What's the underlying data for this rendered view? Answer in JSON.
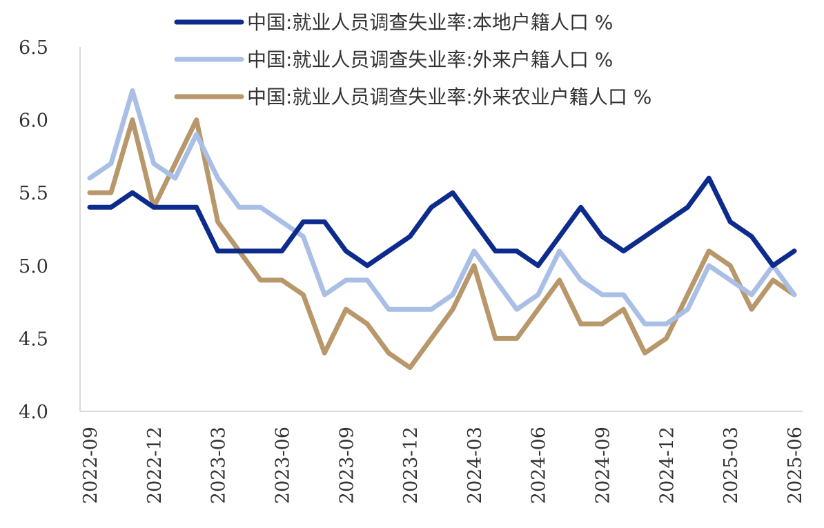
{
  "chart_data": {
    "type": "line",
    "title": "",
    "xlabel": "",
    "ylabel": "",
    "ylim": [
      4.0,
      6.5
    ],
    "y_ticks": [
      "4.0",
      "4.5",
      "5.0",
      "5.5",
      "6.0",
      "6.5"
    ],
    "grid": false,
    "legend_position": "top",
    "x": [
      "2022-09",
      "2022-10",
      "2022-11",
      "2022-12",
      "2023-01",
      "2023-02",
      "2023-03",
      "2023-04",
      "2023-05",
      "2023-06",
      "2023-07",
      "2023-08",
      "2023-09",
      "2023-10",
      "2023-11",
      "2023-12",
      "2024-01",
      "2024-02",
      "2024-03",
      "2024-04",
      "2024-05",
      "2024-06",
      "2024-07",
      "2024-08",
      "2024-09",
      "2024-10",
      "2024-11",
      "2024-12",
      "2025-01",
      "2025-02",
      "2025-03",
      "2025-04",
      "2025-05",
      "2025-06"
    ],
    "x_tick_labels": [
      "2022-09",
      "2022-12",
      "2023-03",
      "2023-06",
      "2023-09",
      "2023-12",
      "2024-03",
      "2024-06",
      "2024-09",
      "2024-12",
      "2025-03",
      "2025-06"
    ],
    "series": [
      {
        "name": "中国:就业人员调查失业率:本地户籍人口 %",
        "color": "#0d2b8c",
        "values": [
          5.4,
          5.4,
          5.5,
          5.4,
          5.4,
          5.4,
          5.1,
          5.1,
          5.1,
          5.1,
          5.3,
          5.3,
          5.1,
          5.0,
          5.1,
          5.2,
          5.4,
          5.5,
          5.3,
          5.1,
          5.1,
          5.0,
          5.2,
          5.4,
          5.2,
          5.1,
          5.2,
          5.3,
          5.4,
          5.6,
          5.3,
          5.2,
          5.0,
          5.1
        ]
      },
      {
        "name": "中国:就业人员调查失业率:外来户籍人口 %",
        "color": "#a9bfe6",
        "values": [
          5.6,
          5.7,
          6.2,
          5.7,
          5.6,
          5.9,
          5.6,
          5.4,
          5.4,
          5.3,
          5.2,
          4.8,
          4.9,
          4.9,
          4.7,
          4.7,
          4.7,
          4.8,
          5.1,
          4.9,
          4.7,
          4.8,
          5.1,
          4.9,
          4.8,
          4.8,
          4.6,
          4.6,
          4.7,
          5.0,
          4.9,
          4.8,
          5.0,
          4.8
        ]
      },
      {
        "name": "中国:就业人员调查失业率:外来农业户籍人口 %",
        "color": "#b8976a",
        "values": [
          5.5,
          5.5,
          6.0,
          5.4,
          5.7,
          6.0,
          5.3,
          5.1,
          4.9,
          4.9,
          4.8,
          4.4,
          4.7,
          4.6,
          4.4,
          4.3,
          4.5,
          4.7,
          5.0,
          4.5,
          4.5,
          4.7,
          4.9,
          4.6,
          4.6,
          4.7,
          4.4,
          4.5,
          4.8,
          5.1,
          5.0,
          4.7,
          4.9,
          4.8
        ]
      }
    ]
  }
}
